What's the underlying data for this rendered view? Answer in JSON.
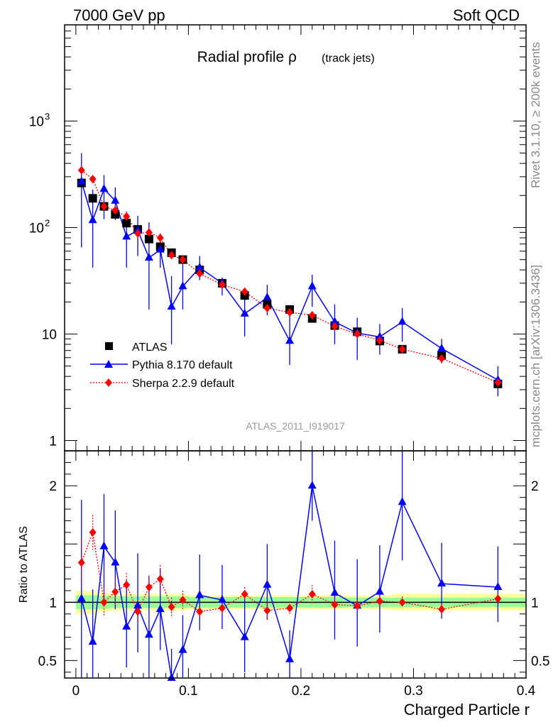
{
  "header": {
    "energy_label": "7000 GeV pp",
    "process_label": "Soft QCD",
    "side_label_top": "Rivet 3.1.10, ≥ 200k events",
    "side_label_bottom": "mcplots.cern.ch [arXiv:1306.3436]"
  },
  "colors": {
    "atlas": "#000000",
    "pythia": "#0000ff",
    "sherpa": "#ff0000",
    "band_inner": "#99ff99",
    "band_outer": "#ffff99"
  },
  "chart_data": [
    {
      "type": "scatter",
      "title": "Radial profile ρ",
      "title_suffix": "(track jets)",
      "analysis_label": "ATLAS_2011_I919017",
      "xlabel": "Charged Particle r",
      "ylabel": "",
      "yscale": "log",
      "xlim": [
        -0.01,
        0.4
      ],
      "ylim": [
        0.8,
        8000
      ],
      "y_ticks": [
        {
          "value": 1,
          "label": "1"
        },
        {
          "value": 10,
          "label": "10"
        },
        {
          "value": 100,
          "label": "10",
          "exp": "2"
        },
        {
          "value": 1000,
          "label": "10",
          "exp": "3"
        }
      ],
      "legend": [
        {
          "label": "ATLAS",
          "marker": "square"
        },
        {
          "label": "Pythia 8.170 default",
          "marker": "triangle"
        },
        {
          "label": "Sherpa 2.2.9 default",
          "marker": "diamond"
        }
      ],
      "series": [
        {
          "name": "ATLAS",
          "x": [
            0.005,
            0.015,
            0.025,
            0.035,
            0.045,
            0.055,
            0.065,
            0.075,
            0.085,
            0.095,
            0.11,
            0.13,
            0.15,
            0.17,
            0.19,
            0.21,
            0.23,
            0.25,
            0.27,
            0.29,
            0.325,
            0.375
          ],
          "y": [
            262,
            188,
            158,
            133,
            110,
            96,
            78,
            66,
            58,
            50,
            40,
            30,
            23,
            19,
            17,
            14,
            12,
            10.5,
            8.6,
            7.2,
            6.3,
            3.4
          ]
        },
        {
          "name": "Pythia 8.170 default",
          "x": [
            0.005,
            0.015,
            0.025,
            0.035,
            0.045,
            0.055,
            0.065,
            0.075,
            0.085,
            0.095,
            0.11,
            0.13,
            0.15,
            0.17,
            0.19,
            0.21,
            0.23,
            0.25,
            0.27,
            0.29,
            0.325,
            0.375
          ],
          "y": [
            270,
            117,
            230,
            178,
            82,
            94,
            52,
            62,
            18,
            28,
            42,
            30,
            15.5,
            22,
            8.6,
            28,
            13,
            10.2,
            9.4,
            13,
            7.3,
            3.7
          ],
          "err_lo": [
            205,
            75,
            110,
            60,
            40,
            40,
            35,
            20,
            10,
            11,
            10,
            7,
            6,
            7,
            3.5,
            10,
            5,
            4.5,
            3,
            4.5,
            2,
            1.1
          ],
          "err_hi": [
            230,
            110,
            80,
            60,
            45,
            35,
            60,
            15,
            17,
            20,
            12,
            4,
            8,
            7,
            7,
            8,
            6,
            4,
            3,
            4.5,
            1.7,
            1.3
          ]
        },
        {
          "name": "Sherpa 2.2.9 default",
          "x": [
            0.005,
            0.015,
            0.025,
            0.035,
            0.045,
            0.055,
            0.065,
            0.075,
            0.085,
            0.095,
            0.11,
            0.13,
            0.15,
            0.17,
            0.19,
            0.21,
            0.23,
            0.25,
            0.27,
            0.29,
            0.325,
            0.375
          ],
          "y": [
            345,
            285,
            158,
            145,
            127,
            88,
            90,
            80,
            55,
            50,
            37,
            29,
            25,
            17.5,
            16,
            15,
            11.8,
            10,
            8.7,
            7.2,
            5.9,
            3.5
          ],
          "err_lo": [
            40,
            25,
            15,
            20,
            15,
            10,
            10,
            8,
            5,
            5,
            3,
            2,
            2,
            1.5,
            1.2,
            1,
            0.8,
            0.6,
            0.5,
            0.4,
            0.3,
            0.2
          ],
          "err_hi": [
            40,
            25,
            15,
            20,
            15,
            10,
            10,
            8,
            5,
            5,
            3,
            2,
            2,
            1.5,
            1.2,
            1,
            0.8,
            0.6,
            0.5,
            0.4,
            0.3,
            0.2
          ]
        }
      ]
    },
    {
      "type": "scatter",
      "title": "",
      "xlabel": "Charged Particle r",
      "ylabel": "Ratio to ATLAS",
      "xlim": [
        -0.01,
        0.4
      ],
      "ylim": [
        0.35,
        2.3
      ],
      "y_ticks": [
        {
          "value": 0.5,
          "label": "0.5"
        },
        {
          "value": 1,
          "label": "1"
        },
        {
          "value": 2,
          "label": "2"
        }
      ],
      "x_ticks": [
        {
          "value": 0,
          "label": "0"
        },
        {
          "value": 0.1,
          "label": "0.1"
        },
        {
          "value": 0.2,
          "label": "0.2"
        },
        {
          "value": 0.3,
          "label": "0.3"
        },
        {
          "value": 0.4,
          "label": "0.4"
        }
      ],
      "reference_line": 1,
      "bands": {
        "edges": [
          0,
          0.01,
          0.02,
          0.03,
          0.04,
          0.05,
          0.06,
          0.07,
          0.08,
          0.09,
          0.1,
          0.12,
          0.14,
          0.16,
          0.18,
          0.2,
          0.22,
          0.24,
          0.26,
          0.28,
          0.3,
          0.35,
          0.4
        ],
        "inner": [
          0.06,
          0.06,
          0.055,
          0.05,
          0.05,
          0.05,
          0.05,
          0.05,
          0.05,
          0.05,
          0.045,
          0.045,
          0.045,
          0.045,
          0.045,
          0.045,
          0.045,
          0.04,
          0.04,
          0.04,
          0.04,
          0.04
        ],
        "outer": [
          0.1,
          0.1,
          0.08,
          0.07,
          0.07,
          0.07,
          0.07,
          0.07,
          0.07,
          0.07,
          0.06,
          0.06,
          0.06,
          0.06,
          0.06,
          0.06,
          0.06,
          0.06,
          0.06,
          0.07,
          0.07,
          0.07
        ]
      },
      "series": [
        {
          "name": "Pythia 8.170 default",
          "x": [
            0.005,
            0.015,
            0.025,
            0.035,
            0.045,
            0.055,
            0.065,
            0.075,
            0.085,
            0.095,
            0.11,
            0.13,
            0.15,
            0.17,
            0.19,
            0.21,
            0.23,
            0.25,
            0.27,
            0.29,
            0.325,
            0.375
          ],
          "y": [
            1.03,
            0.66,
            1.48,
            1.34,
            0.79,
            0.97,
            0.72,
            0.94,
            0.35,
            0.59,
            1.06,
            1.02,
            0.7,
            1.15,
            0.51,
            2.0,
            1.08,
            0.97,
            1.09,
            1.86,
            1.16,
            1.13
          ],
          "err_lo": [
            0.8,
            0.4,
            0.5,
            0.4,
            0.35,
            0.4,
            0.4,
            0.35,
            0.2,
            0.3,
            0.3,
            0.25,
            0.3,
            0.3,
            0.25,
            0.3,
            0.4,
            0.35,
            0.35,
            0.5,
            0.3,
            0.3
          ],
          "err_hi": [
            0.85,
            0.45,
            0.45,
            0.45,
            0.4,
            0.45,
            0.5,
            0.35,
            0.25,
            0.3,
            0.35,
            0.3,
            0.35,
            0.35,
            0.25,
            0.35,
            0.45,
            0.4,
            0.4,
            0.45,
            0.35,
            0.35
          ]
        },
        {
          "name": "Sherpa 2.2.9 default",
          "x": [
            0.005,
            0.015,
            0.025,
            0.035,
            0.045,
            0.055,
            0.065,
            0.075,
            0.085,
            0.095,
            0.11,
            0.13,
            0.15,
            0.17,
            0.19,
            0.21,
            0.23,
            0.25,
            0.27,
            0.29,
            0.325,
            0.375
          ],
          "y": [
            1.34,
            1.6,
            1.0,
            1.09,
            1.15,
            0.92,
            1.13,
            1.2,
            0.96,
            1.02,
            0.92,
            0.95,
            1.07,
            0.93,
            0.95,
            1.07,
            0.98,
            0.97,
            1.01,
            1.0,
            0.94,
            1.03
          ],
          "err_lo": [
            0.2,
            0.15,
            0.12,
            0.12,
            0.1,
            0.1,
            0.1,
            0.12,
            0.08,
            0.08,
            0.06,
            0.06,
            0.06,
            0.08,
            0.06,
            0.08,
            0.05,
            0.05,
            0.05,
            0.05,
            0.05,
            0.05
          ],
          "err_hi": [
            0.2,
            0.15,
            0.12,
            0.12,
            0.1,
            0.1,
            0.1,
            0.12,
            0.08,
            0.08,
            0.06,
            0.06,
            0.06,
            0.08,
            0.06,
            0.08,
            0.05,
            0.05,
            0.05,
            0.05,
            0.05,
            0.05
          ]
        }
      ]
    }
  ]
}
